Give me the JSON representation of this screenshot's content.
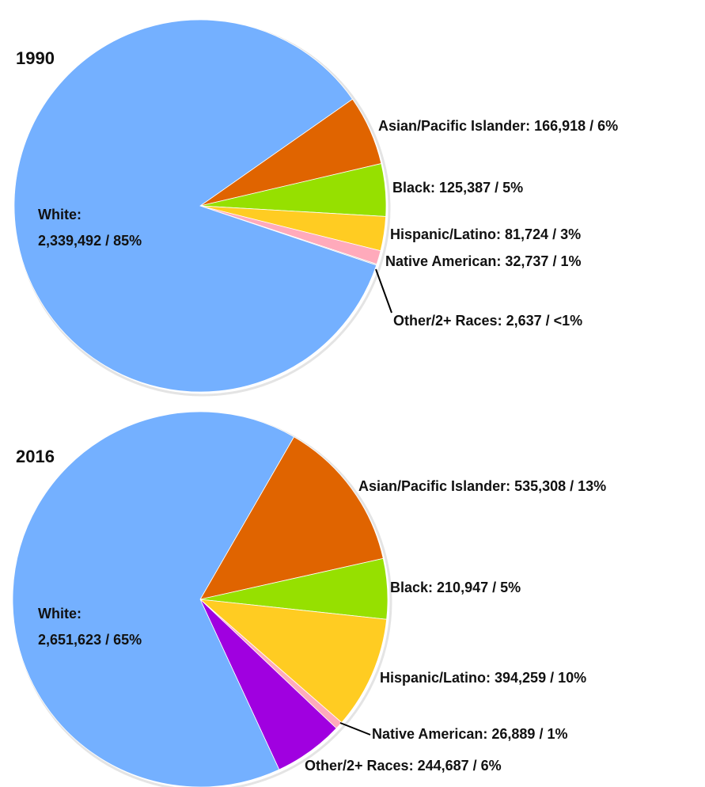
{
  "chart_data": [
    {
      "type": "pie",
      "title": "1990",
      "categories": [
        "Asian/Pacific Islander:",
        "Black:",
        "Hispanic/Latino:",
        "Native American:",
        "Other/2+ Races:",
        "White:"
      ],
      "values": [
        166918,
        125387,
        81724,
        32737,
        2637,
        2339492
      ],
      "value_labels": [
        "166,918 / 6%",
        "125,387 / 5%",
        "81,724 / 3%",
        "32,737 / 1%",
        "2,637 / <1%",
        "2,339,492 / 85%"
      ],
      "colors": [
        "#e06400",
        "#96e000",
        "#ffcc22",
        "#ffaabb",
        "#c8c8c8",
        "#74b0ff"
      ]
    },
    {
      "type": "pie",
      "title": "2016",
      "categories": [
        "Asian/Pacific Islander:",
        "Black:",
        "Hispanic/Latino:",
        "Native American:",
        "Other/2+ Races:",
        "White:"
      ],
      "values": [
        535308,
        210947,
        394259,
        26889,
        244687,
        2651623
      ],
      "value_labels": [
        "535,308 / 13%",
        "210,947 / 5%",
        "394,259 / 10%",
        "26,889 / 1%",
        "244,687 / 6%",
        "2,651,623 / 65%"
      ],
      "colors": [
        "#e06400",
        "#96e000",
        "#ffcc22",
        "#ffaabb",
        "#a000e0",
        "#74b0ff"
      ]
    }
  ]
}
